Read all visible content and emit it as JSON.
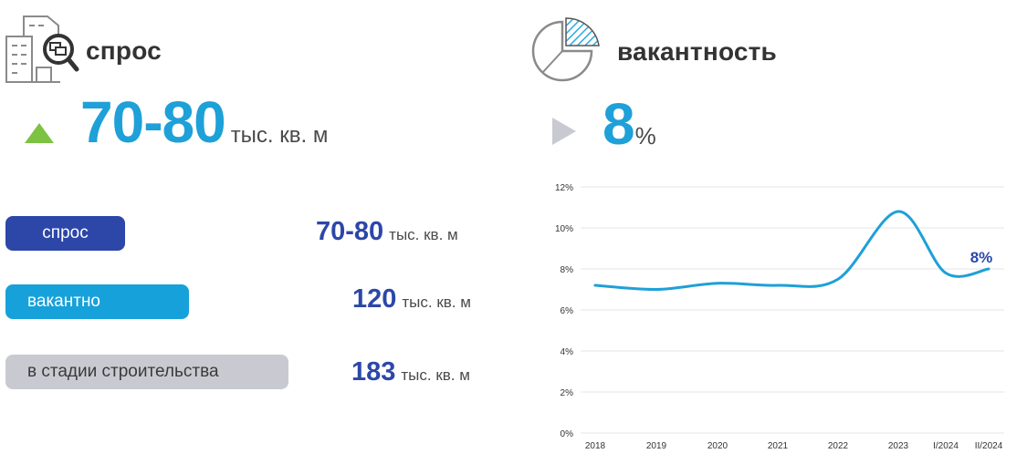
{
  "demand": {
    "title": "спрос",
    "value": "70-80",
    "unit": "тыс. кв. м",
    "trend": "up",
    "trend_color": "#7dc243"
  },
  "vacancy": {
    "title": "вакантность",
    "value": "8",
    "unit": "%",
    "trend": "flat",
    "trend_color": "#c9cad1"
  },
  "stats": [
    {
      "label": "спрос",
      "value": "70-80",
      "unit": "тыс. кв. м",
      "color": "#2c47a8"
    },
    {
      "label": "вакантно",
      "value": "120",
      "unit": "тыс. кв. м",
      "color": "#17a1da"
    },
    {
      "label": "в стадии строительства",
      "value": "183",
      "unit": "тыс. кв. м",
      "color": "#c9cad1"
    }
  ],
  "chart_data": {
    "type": "line",
    "x": [
      "2018",
      "2019",
      "2020",
      "2021",
      "2022",
      "2023",
      "I/2024",
      "II/2024"
    ],
    "series": [
      {
        "values": [
          7.2,
          7.0,
          7.3,
          7.2,
          7.5,
          10.8,
          7.8,
          8.0
        ],
        "color": "#1ea0d8"
      }
    ],
    "y_ticks": [
      "0%",
      "2%",
      "4%",
      "6%",
      "8%",
      "10%",
      "12%"
    ],
    "ylim": [
      0,
      12
    ],
    "grid": true,
    "annotation": {
      "text": "8%",
      "at": "II/2024",
      "color": "#2c47a8"
    }
  }
}
